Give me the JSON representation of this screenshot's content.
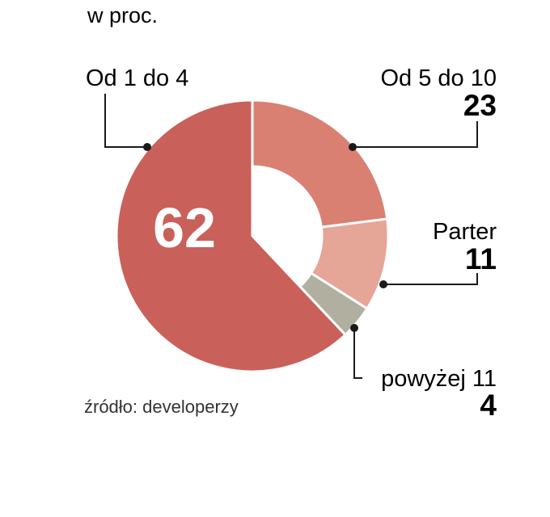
{
  "chart_data": {
    "type": "pie",
    "subtitle": "w proc.",
    "slices": [
      {
        "label": "Od 5 do 10",
        "value": 23,
        "value_label": "23",
        "color": "#d98072"
      },
      {
        "label": "Parter",
        "value": 11,
        "value_label": "11",
        "color": "#e5a597"
      },
      {
        "label": "powyżej 11",
        "value": 4,
        "value_label": "4",
        "color": "#b1b0a0"
      },
      {
        "label": "Od 1 do 4",
        "value": 62,
        "value_label": "62",
        "color": "#c9615a"
      }
    ],
    "source": "źródło: developerzy"
  }
}
